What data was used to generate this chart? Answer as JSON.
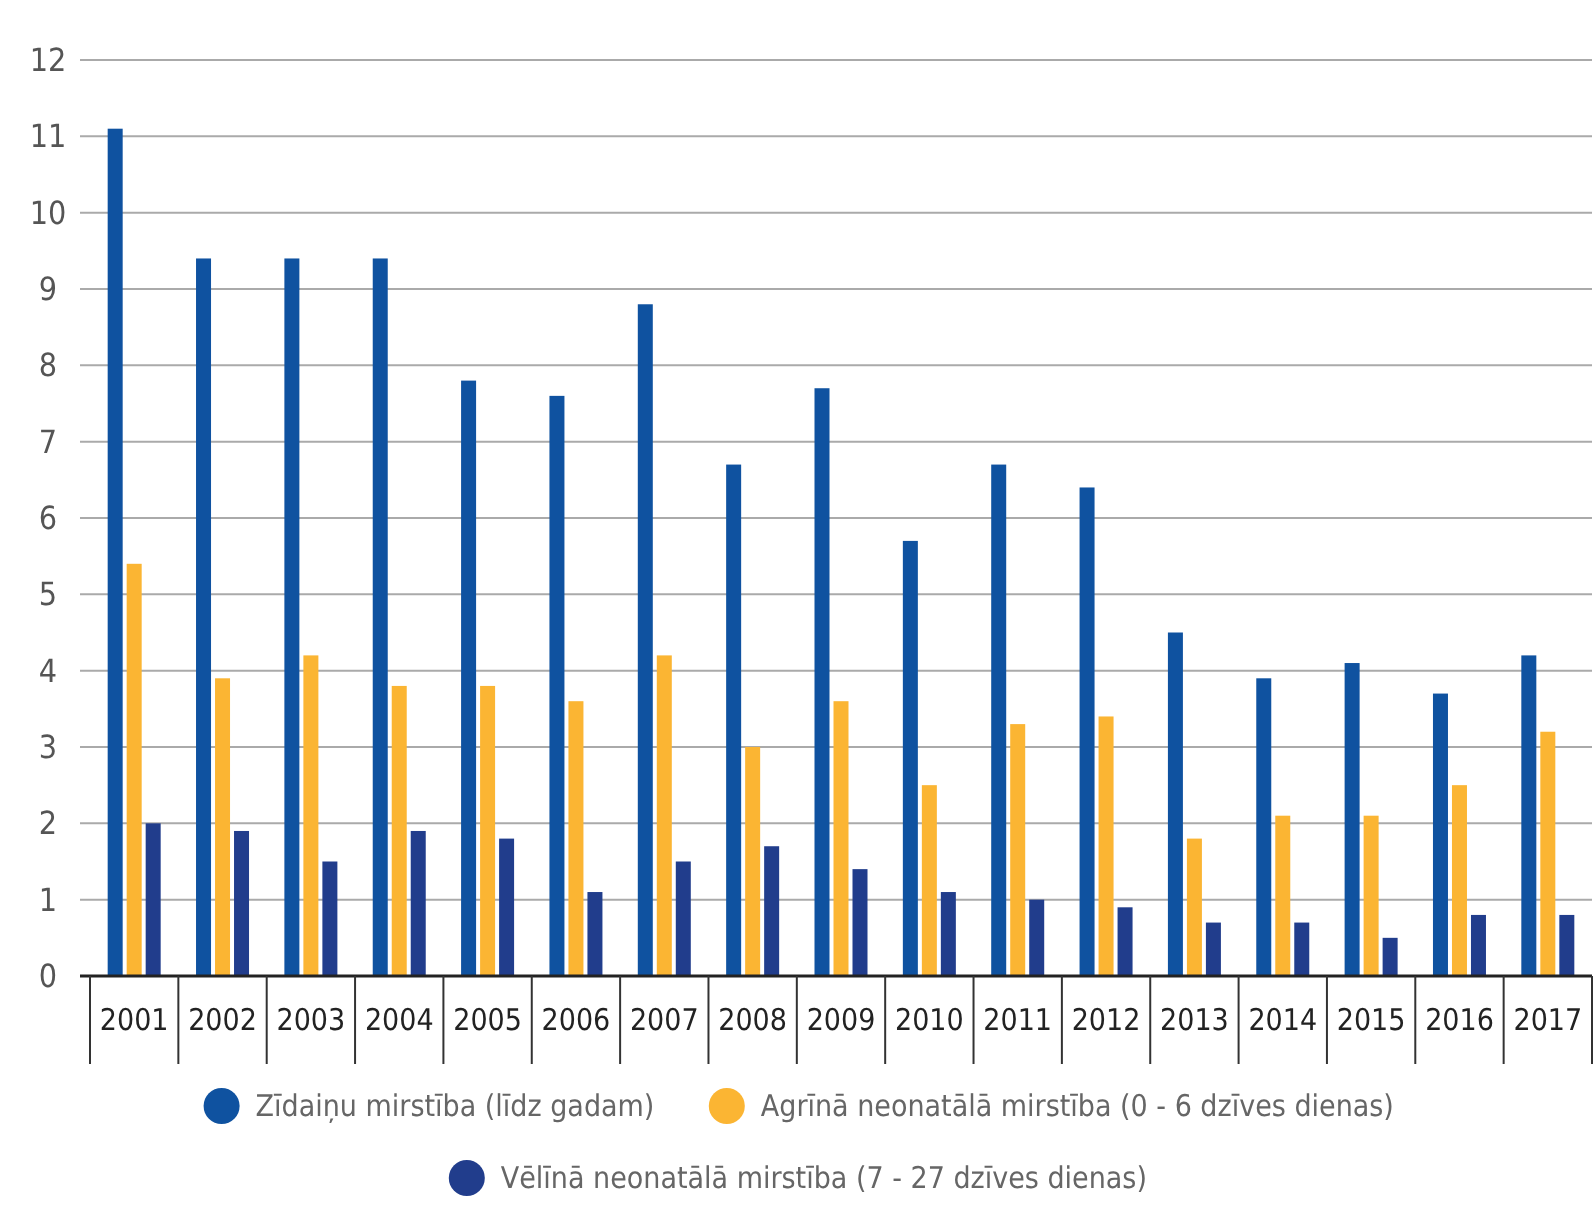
{
  "chart_data": {
    "type": "bar",
    "categories": [
      "2001",
      "2002",
      "2003",
      "2004",
      "2005",
      "2006",
      "2007",
      "2008",
      "2009",
      "2010",
      "2011",
      "2012",
      "2013",
      "2014",
      "2015",
      "2016",
      "2017"
    ],
    "series": [
      {
        "name": "Zīdaiņu mirstība (līdz gadam)",
        "color": "#0f52a0",
        "values": [
          11.1,
          9.4,
          9.4,
          9.4,
          7.8,
          7.6,
          8.8,
          6.7,
          7.7,
          5.7,
          6.7,
          6.4,
          4.5,
          3.9,
          4.1,
          3.7,
          4.2
        ]
      },
      {
        "name": "Agrīnā neonatālā mirstība (0 - 6 dzīves dienas)",
        "color": "#fbb533",
        "values": [
          5.4,
          3.9,
          4.2,
          3.8,
          3.8,
          3.6,
          4.2,
          3.0,
          3.6,
          2.5,
          3.3,
          3.4,
          1.8,
          2.1,
          2.1,
          2.5,
          3.2
        ]
      },
      {
        "name": "Vēlīnā neonatālā mirstība (7 - 27 dzīves dienas)",
        "color": "#213d8c",
        "values": [
          2.0,
          1.9,
          1.5,
          1.9,
          1.8,
          1.1,
          1.5,
          1.7,
          1.4,
          1.1,
          1.0,
          0.9,
          0.7,
          0.7,
          0.5,
          0.8,
          0.8
        ]
      }
    ],
    "ylim": [
      0,
      12
    ],
    "yticks": [
      0,
      1,
      2,
      3,
      4,
      5,
      6,
      7,
      8,
      9,
      10,
      11,
      12
    ],
    "grid": "y",
    "legend": "bottom"
  }
}
